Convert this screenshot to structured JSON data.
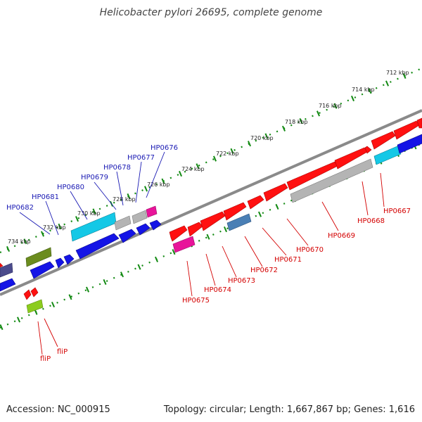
{
  "title": "Helicobacter pylori 26695, complete genome",
  "footer": {
    "accession": "Accession: NC_000915",
    "summary": "Topology: circular; Length: 1,667,867 bp; Genes: 1,616"
  },
  "colors": {
    "backbone": "#8a8a8a",
    "tick": "#138a13",
    "label_blue": "#1a1ab4",
    "label_red": "#d40000",
    "gene_red": "#ff1010",
    "gene_blue": "#1414e6",
    "gene_cyan": "#14c8e6",
    "gene_gray": "#b4b4b4",
    "gene_magenta": "#e8149a",
    "gene_olive": "#6b8c1e",
    "gene_steel": "#4a7fb5",
    "gene_slate": "#4b4b8c",
    "gene_lime": "#8ccc1e"
  },
  "kbp_labels": [
    "712 kbp",
    "714 kbp",
    "716 kbp",
    "718 kbp",
    "720 kbp",
    "722 kbp",
    "724 kbp",
    "726 kbp",
    "728 kbp",
    "730 kbp",
    "732 kbp",
    "734 kbp"
  ],
  "blue_labels": [
    "HP0676",
    "HP0677",
    "HP0678",
    "HP0679",
    "HP0680",
    "HP0681",
    "HP0682"
  ],
  "red_labels": [
    "HP0667",
    "HP0668",
    "HP0669",
    "HP0670",
    "HP0671",
    "HP0672",
    "HP0673",
    "HP0674",
    "HP0675",
    "fliP",
    "fliP"
  ]
}
